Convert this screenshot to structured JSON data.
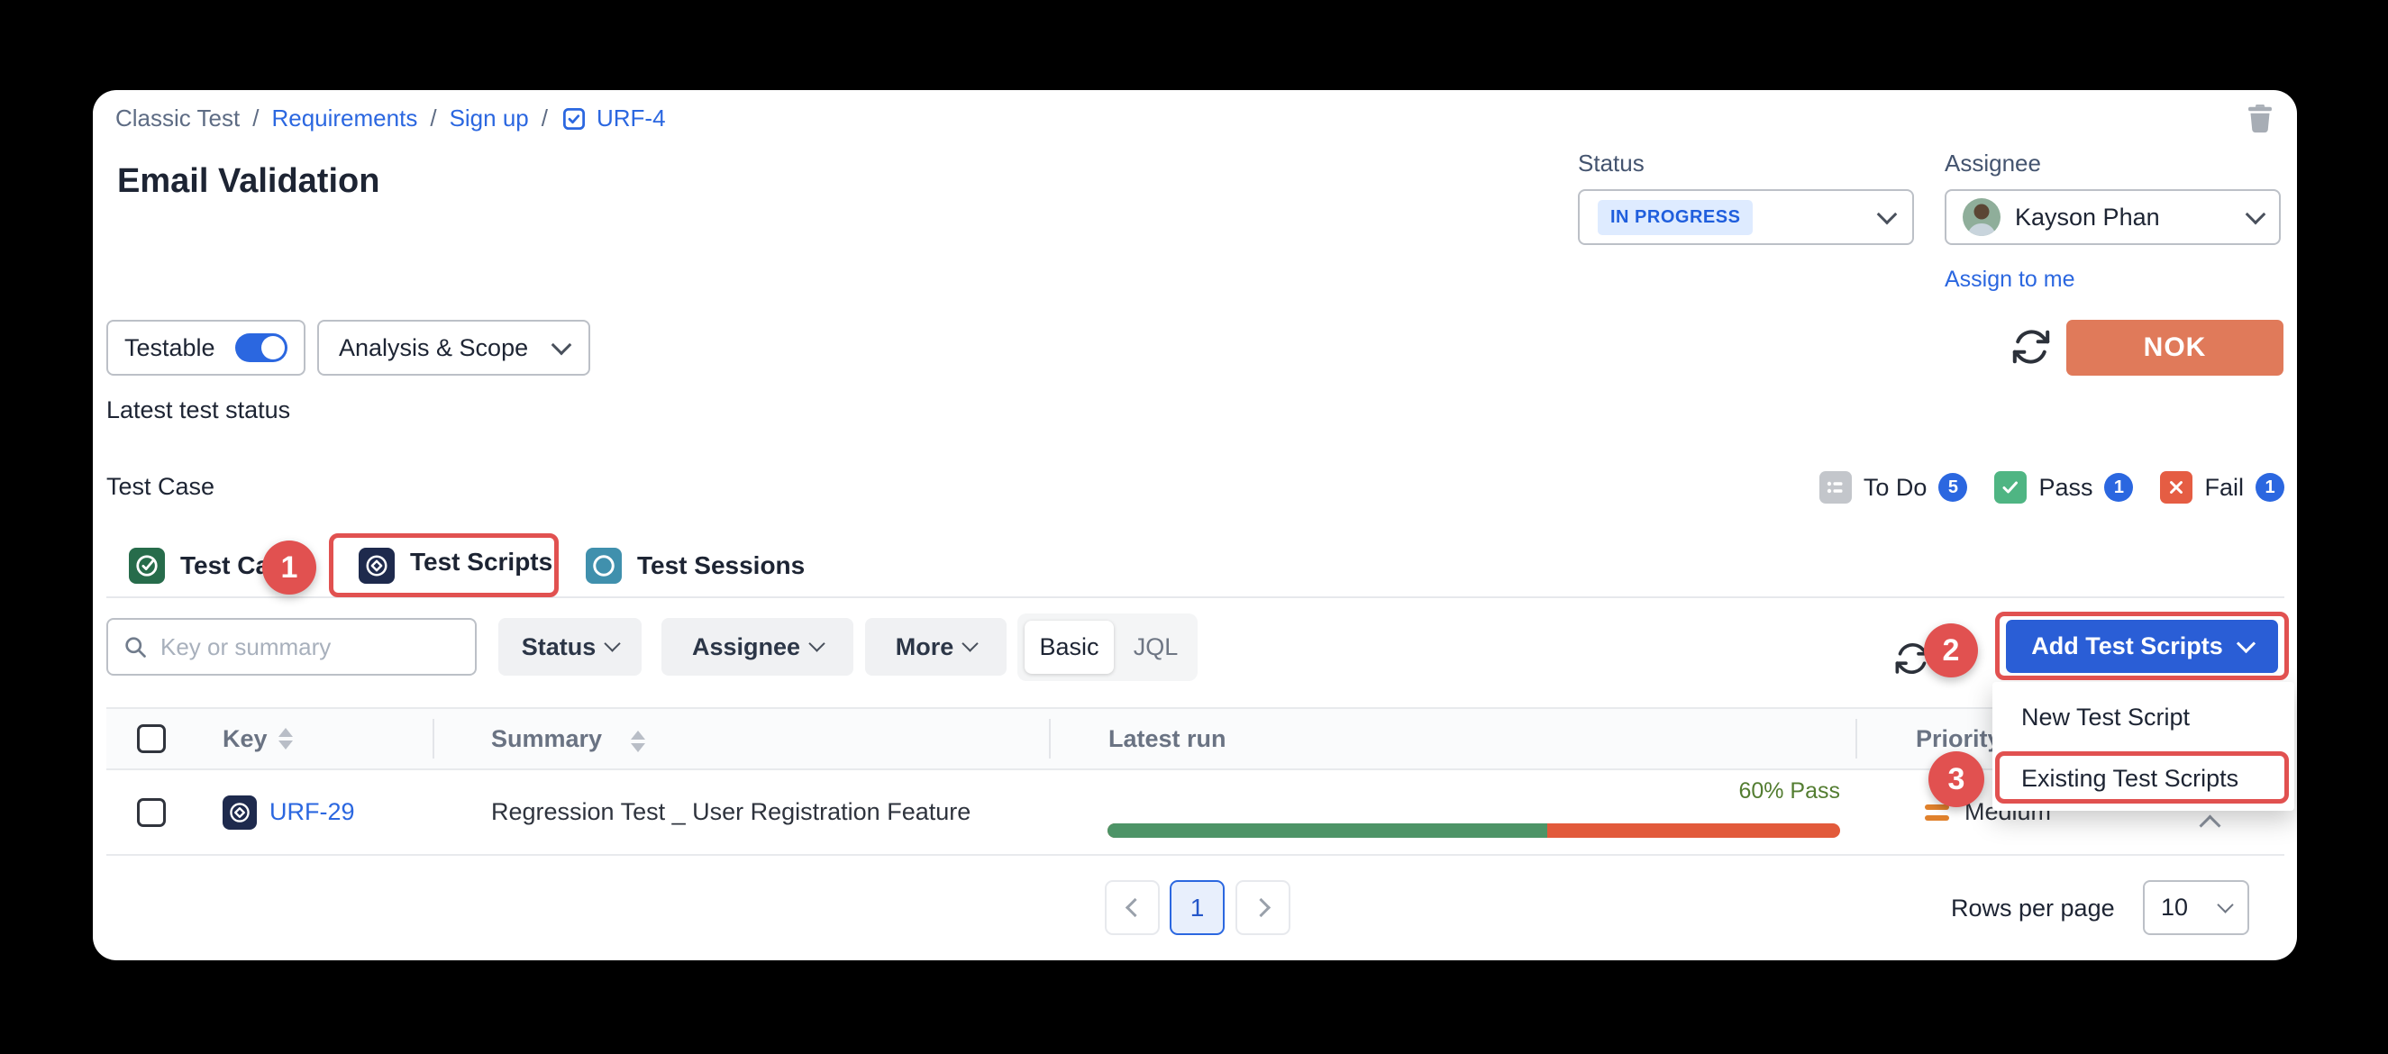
{
  "window": {
    "background": "#000000"
  },
  "breadcrumb": {
    "separator": "/",
    "items": [
      "Classic Test",
      "Requirements",
      "Sign up",
      "URF-4"
    ]
  },
  "header": {
    "title": "Email Validation"
  },
  "status_panel": {
    "label": "Status",
    "value": "IN PROGRESS"
  },
  "assignee_panel": {
    "label": "Assignee",
    "value": "Kayson Phan",
    "assign_link": "Assign to me"
  },
  "toolbar": {
    "testable_label": "Testable",
    "scope_label": "Analysis & Scope",
    "nok_label": "NOK"
  },
  "section": {
    "latest_test_status": "Latest test status",
    "test_case": "Test Case"
  },
  "status_summary": [
    {
      "label": "To Do",
      "count": "5"
    },
    {
      "label": "Pass",
      "count": "1"
    },
    {
      "label": "Fail",
      "count": "1"
    }
  ],
  "tabs": [
    {
      "label": "Test Cases"
    },
    {
      "label": "Test Scripts"
    },
    {
      "label": "Test Sessions"
    }
  ],
  "annotations": [
    "1",
    "2",
    "3"
  ],
  "filters": {
    "search_placeholder": "Key or summary",
    "status": "Status",
    "assignee": "Assignee",
    "more": "More",
    "basic": "Basic",
    "jql": "JQL"
  },
  "add_test_scripts": {
    "button": "Add Test Scripts",
    "menu": [
      {
        "label": "New Test Script"
      },
      {
        "label": "Existing Test Scripts"
      }
    ]
  },
  "table": {
    "headers": [
      {
        "label": "Key"
      },
      {
        "label": "Summary"
      },
      {
        "label": "Latest run"
      },
      {
        "label": "Priority"
      }
    ],
    "rows": [
      {
        "key": "URF-29",
        "summary": "Regression Test _ User Registration Feature",
        "latest_run": {
          "pass_pct": 60,
          "pass_label": "60% Pass"
        },
        "priority": "Medium"
      }
    ]
  },
  "pagination": {
    "page": "1",
    "rows_per_page_label": "Rows per page",
    "rows_per_page_value": "10"
  },
  "icons": {
    "trash": "trash-icon",
    "refresh": "refresh-icon",
    "search": "search-icon",
    "checkbox_issue": "checked-task-icon",
    "test_cases": "check-circle-icon",
    "test_scripts": "diamond-circle-icon",
    "test_sessions": "circle-icon",
    "todo": "list-icon",
    "pass": "check-icon",
    "fail": "x-icon",
    "priority_medium": "equals-icon"
  },
  "colors": {
    "annotation_red": "#e15150",
    "primary_blue": "#2b67e0",
    "button_blue": "#2a5ed6",
    "nok_salmon": "#e07a5a",
    "in_progress_bg": "#deebff",
    "in_progress_text": "#1f5edd",
    "pass_green": "#4fb583",
    "fail_red": "#e55d43",
    "todo_gray": "#c3c6cb",
    "progress_green": "#4d9467",
    "progress_red": "#e25a3b",
    "pass_text_green": "#537d31",
    "priority_orange": "#e0812c",
    "tab_cases_green": "#276c4b",
    "tab_scripts_navy": "#1e2a4d",
    "tab_sessions_teal": "#4090ad"
  }
}
